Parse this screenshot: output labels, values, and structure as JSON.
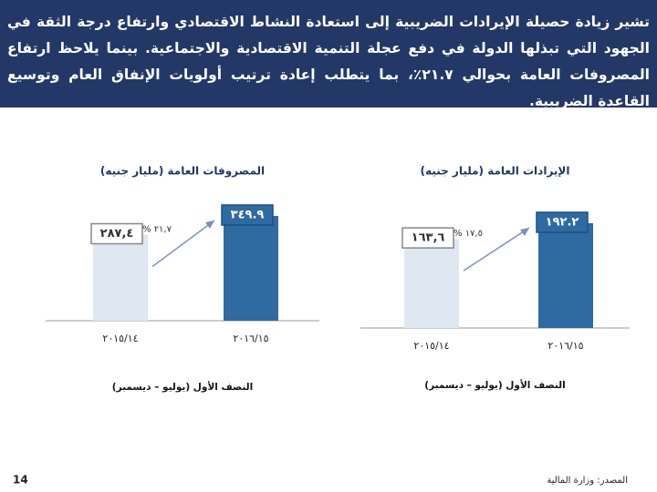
{
  "header": {
    "text": "تشير زيادة حصيلة الإيرادات الضريبية إلى استعادة النشاط الاقتصادي وارتفاع درجة الثقة في الجهود التي تبذلها الدولة في دفع عجلة التنمية الاقتصادية والاجتماعية. بينما يلاحظ ارتفاع المصروفات العامة بحوالي ٢١.٧٪، بما يتطلب إعادة ترتيب أولويات الإنفاق العام وتوسيع القاعدة الضريبية."
  },
  "chart_data": [
    {
      "type": "bar",
      "title": "المصروفات العامة (مليار جنيه)",
      "subtitle": "النصف الأول (يوليو – ديسمبر)",
      "categories": [
        "٢٠١٥/١٤",
        "٢٠١٦/١٥"
      ],
      "values": [
        287.4,
        349.9
      ],
      "value_labels": [
        "٢٨٧,٤",
        "٣٤٩.٩"
      ],
      "colors": [
        "#dfe7f1",
        "#2f6aa3"
      ],
      "annotation": "٢١,٧ %"
    },
    {
      "type": "bar",
      "title": "الإيرادات العامة (مليار جنيه)",
      "subtitle": "النصف الأول (يوليو – ديسمبر)",
      "categories": [
        "٢٠١٥/١٤",
        "٢٠١٦/١٥"
      ],
      "values": [
        163.6,
        192.2
      ],
      "value_labels": [
        "١٦٣,٦",
        "١٩٢.٢"
      ],
      "colors": [
        "#dfe7f1",
        "#2f6aa3"
      ],
      "annotation": "١٧,٥ %"
    }
  ],
  "footer": {
    "source": "المصدر: وزارة المالية",
    "page": "14"
  }
}
